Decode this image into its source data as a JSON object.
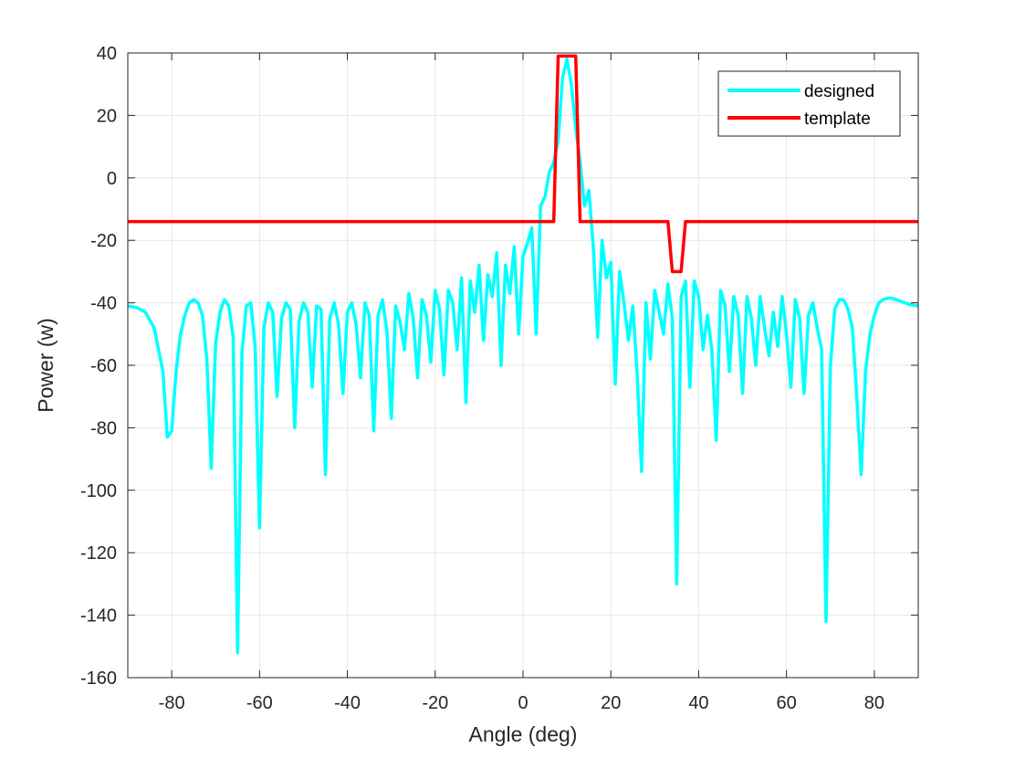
{
  "chart_data": {
    "type": "line",
    "title": "",
    "xlabel": "Angle (deg)",
    "ylabel": "Power (w)",
    "xlim": [
      -90,
      90
    ],
    "ylim": [
      -160,
      40
    ],
    "xticks": [
      -80,
      -60,
      -40,
      -20,
      0,
      20,
      40,
      60,
      80
    ],
    "yticks": [
      40,
      20,
      0,
      -20,
      -40,
      -60,
      -80,
      -100,
      -120,
      -140,
      -160
    ],
    "grid": true,
    "legend_position": "top-right",
    "series": [
      {
        "name": "designed",
        "color": "#00FFFF",
        "points": [
          [
            -90,
            -41
          ],
          [
            -88,
            -41.5
          ],
          [
            -86,
            -43
          ],
          [
            -84,
            -48
          ],
          [
            -82,
            -62
          ],
          [
            -81,
            -83
          ],
          [
            -80,
            -81
          ],
          [
            -79,
            -62
          ],
          [
            -78,
            -50
          ],
          [
            -77,
            -44
          ],
          [
            -76,
            -40
          ],
          [
            -75,
            -39
          ],
          [
            -74,
            -40
          ],
          [
            -73,
            -44
          ],
          [
            -72,
            -58
          ],
          [
            -71,
            -93
          ],
          [
            -70,
            -53
          ],
          [
            -69,
            -43
          ],
          [
            -68,
            -39
          ],
          [
            -67,
            -41
          ],
          [
            -66,
            -51
          ],
          [
            -65,
            -152
          ],
          [
            -64,
            -56
          ],
          [
            -63,
            -41
          ],
          [
            -62,
            -40
          ],
          [
            -61,
            -54
          ],
          [
            -60,
            -112
          ],
          [
            -59,
            -48
          ],
          [
            -58,
            -40
          ],
          [
            -57,
            -43
          ],
          [
            -56,
            -70
          ],
          [
            -55,
            -45
          ],
          [
            -54,
            -40
          ],
          [
            -53,
            -42
          ],
          [
            -52,
            -80
          ],
          [
            -51,
            -46
          ],
          [
            -50,
            -40
          ],
          [
            -49,
            -43
          ],
          [
            -48,
            -67
          ],
          [
            -47,
            -41
          ],
          [
            -46,
            -42
          ],
          [
            -45,
            -95
          ],
          [
            -44,
            -45
          ],
          [
            -43,
            -40
          ],
          [
            -42,
            -47
          ],
          [
            -41,
            -69
          ],
          [
            -40,
            -43
          ],
          [
            -39,
            -40
          ],
          [
            -38,
            -47
          ],
          [
            -37,
            -64
          ],
          [
            -36,
            -40
          ],
          [
            -35,
            -44
          ],
          [
            -34,
            -81
          ],
          [
            -33,
            -44
          ],
          [
            -32,
            -39
          ],
          [
            -31,
            -49
          ],
          [
            -30,
            -77
          ],
          [
            -29,
            -41
          ],
          [
            -28,
            -46
          ],
          [
            -27,
            -55
          ],
          [
            -26,
            -37
          ],
          [
            -25,
            -45
          ],
          [
            -24,
            -64
          ],
          [
            -23,
            -39
          ],
          [
            -22,
            -44
          ],
          [
            -21,
            -59
          ],
          [
            -20,
            -36
          ],
          [
            -19,
            -42
          ],
          [
            -18,
            -63
          ],
          [
            -17,
            -36
          ],
          [
            -16,
            -40
          ],
          [
            -15,
            -55
          ],
          [
            -14,
            -32
          ],
          [
            -13,
            -72
          ],
          [
            -12,
            -33
          ],
          [
            -11,
            -43
          ],
          [
            -10,
            -28
          ],
          [
            -9,
            -52
          ],
          [
            -8,
            -31
          ],
          [
            -7,
            -38
          ],
          [
            -6,
            -24
          ],
          [
            -5,
            -60
          ],
          [
            -4,
            -28
          ],
          [
            -3,
            -37
          ],
          [
            -2,
            -22
          ],
          [
            -1,
            -50
          ],
          [
            0,
            -25
          ],
          [
            1,
            -21
          ],
          [
            2,
            -16
          ],
          [
            3,
            -50
          ],
          [
            4,
            -9
          ],
          [
            5,
            -6
          ],
          [
            6,
            2
          ],
          [
            7,
            5
          ],
          [
            8,
            12
          ],
          [
            9,
            32
          ],
          [
            10,
            38
          ],
          [
            11,
            30
          ],
          [
            12,
            16
          ],
          [
            13,
            5
          ],
          [
            14,
            -9
          ],
          [
            15,
            -4
          ],
          [
            16,
            -22
          ],
          [
            17,
            -51
          ],
          [
            18,
            -20
          ],
          [
            19,
            -32
          ],
          [
            20,
            -27
          ],
          [
            21,
            -66
          ],
          [
            22,
            -30
          ],
          [
            23,
            -40
          ],
          [
            24,
            -52
          ],
          [
            25,
            -41
          ],
          [
            26,
            -63
          ],
          [
            27,
            -94
          ],
          [
            28,
            -40
          ],
          [
            29,
            -58
          ],
          [
            30,
            -36
          ],
          [
            31,
            -43
          ],
          [
            32,
            -50
          ],
          [
            33,
            -34
          ],
          [
            34,
            -45
          ],
          [
            35,
            -130
          ],
          [
            36,
            -38
          ],
          [
            37,
            -33
          ],
          [
            38,
            -67
          ],
          [
            39,
            -33
          ],
          [
            40,
            -38
          ],
          [
            41,
            -55
          ],
          [
            42,
            -44
          ],
          [
            43,
            -55
          ],
          [
            44,
            -84
          ],
          [
            45,
            -36
          ],
          [
            46,
            -41
          ],
          [
            47,
            -62
          ],
          [
            48,
            -38
          ],
          [
            49,
            -44
          ],
          [
            50,
            -69
          ],
          [
            51,
            -38
          ],
          [
            52,
            -45
          ],
          [
            53,
            -60
          ],
          [
            54,
            -38
          ],
          [
            55,
            -48
          ],
          [
            56,
            -57
          ],
          [
            57,
            -43
          ],
          [
            58,
            -54
          ],
          [
            59,
            -38
          ],
          [
            60,
            -50
          ],
          [
            61,
            -67
          ],
          [
            62,
            -39
          ],
          [
            63,
            -45
          ],
          [
            64,
            -69
          ],
          [
            65,
            -44
          ],
          [
            66,
            -40
          ],
          [
            67,
            -48
          ],
          [
            68,
            -55
          ],
          [
            69,
            -142
          ],
          [
            70,
            -60
          ],
          [
            71,
            -42
          ],
          [
            72,
            -39
          ],
          [
            73,
            -39
          ],
          [
            74,
            -42
          ],
          [
            75,
            -48
          ],
          [
            76,
            -70
          ],
          [
            77,
            -95
          ],
          [
            78,
            -62
          ],
          [
            79,
            -50
          ],
          [
            80,
            -44
          ],
          [
            81,
            -40
          ],
          [
            82,
            -39
          ],
          [
            83,
            -38.5
          ],
          [
            84,
            -38.5
          ],
          [
            85,
            -39
          ],
          [
            86,
            -39.5
          ],
          [
            88,
            -40.5
          ],
          [
            90,
            -41
          ]
        ]
      },
      {
        "name": "template",
        "color": "#FF0000",
        "points": [
          [
            -90,
            -14
          ],
          [
            7,
            -14
          ],
          [
            8,
            39
          ],
          [
            12,
            39
          ],
          [
            13,
            -14
          ],
          [
            33,
            -14
          ],
          [
            34,
            -30
          ],
          [
            36,
            -30
          ],
          [
            37,
            -14
          ],
          [
            90,
            -14
          ]
        ]
      }
    ]
  }
}
